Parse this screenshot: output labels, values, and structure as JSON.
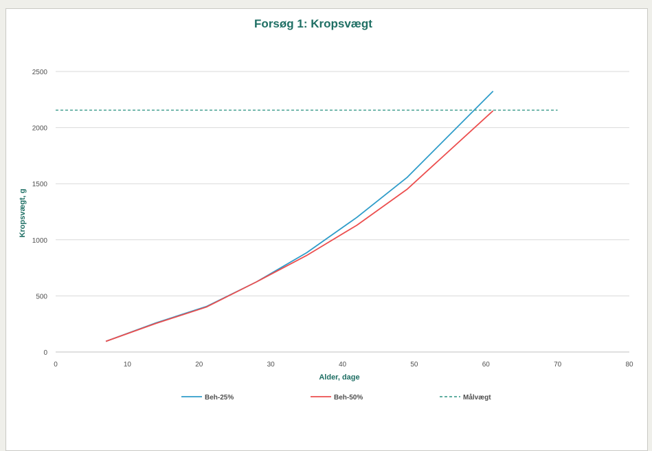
{
  "chart_data": {
    "type": "line",
    "title": "Forsøg 1: Kropsvægt",
    "xlabel": "Alder, dage",
    "ylabel": "Kropsvægt, g",
    "xlim": [
      0,
      80
    ],
    "ylim": [
      0,
      2500
    ],
    "xticks": [
      0,
      10,
      20,
      30,
      40,
      50,
      60,
      70,
      80
    ],
    "yticks": [
      0,
      500,
      1000,
      1500,
      2000,
      2500
    ],
    "grid": "horizontal",
    "legend": "bottom",
    "series": [
      {
        "name": "Beh-25%",
        "color": "#2e9cc9",
        "style": "solid",
        "x": [
          7,
          14,
          21,
          28,
          35,
          42,
          49,
          61
        ],
        "y": [
          95,
          260,
          405,
          625,
          885,
          1200,
          1555,
          2325
        ]
      },
      {
        "name": "Beh-50%",
        "color": "#ec4e4e",
        "style": "solid",
        "x": [
          7,
          14,
          21,
          28,
          35,
          42,
          49,
          61
        ],
        "y": [
          95,
          255,
          400,
          625,
          860,
          1130,
          1450,
          2150
        ]
      },
      {
        "name": "Målvægt",
        "color": "#4aa394",
        "style": "dashed",
        "x": [
          0,
          70
        ],
        "y": [
          2155,
          2155
        ]
      }
    ]
  }
}
